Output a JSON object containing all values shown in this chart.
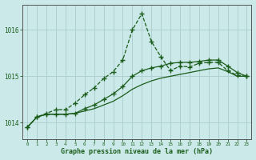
{
  "title": "Graphe pression niveau de la mer (hPa)",
  "background_color": "#cbe9e9",
  "grid_color": "#b0d8d8",
  "line_color_dark": "#1a5c1a",
  "line_color_mid": "#2a7a2a",
  "x_labels": [
    "0",
    "1",
    "2",
    "3",
    "4",
    "5",
    "6",
    "7",
    "8",
    "9",
    "10",
    "11",
    "12",
    "13",
    "14",
    "15",
    "16",
    "17",
    "18",
    "19",
    "20",
    "21",
    "22",
    "23"
  ],
  "ylim": [
    1013.65,
    1016.55
  ],
  "yticks": [
    1014,
    1015,
    1016
  ],
  "series": {
    "dotted": [
      1013.9,
      1014.12,
      1014.2,
      1014.28,
      1014.28,
      1014.42,
      1014.6,
      1014.75,
      1014.95,
      1015.1,
      1015.35,
      1016.0,
      1016.35,
      1015.75,
      1015.42,
      1015.12,
      1015.22,
      1015.2,
      1015.28,
      1015.3,
      1015.3,
      1015.12,
      1015.02,
      1015.0
    ],
    "solid_upper": [
      1013.9,
      1014.12,
      1014.18,
      1014.18,
      1014.18,
      1014.2,
      1014.3,
      1014.38,
      1014.5,
      1014.62,
      1014.78,
      1015.0,
      1015.12,
      1015.18,
      1015.22,
      1015.28,
      1015.3,
      1015.3,
      1015.32,
      1015.35,
      1015.35,
      1015.22,
      1015.08,
      1015.0
    ],
    "solid_lower": [
      1013.9,
      1014.12,
      1014.18,
      1014.18,
      1014.18,
      1014.2,
      1014.25,
      1014.3,
      1014.38,
      1014.46,
      1014.58,
      1014.72,
      1014.82,
      1014.9,
      1014.96,
      1015.0,
      1015.04,
      1015.08,
      1015.12,
      1015.16,
      1015.18,
      1015.1,
      1015.0,
      1015.0
    ]
  }
}
